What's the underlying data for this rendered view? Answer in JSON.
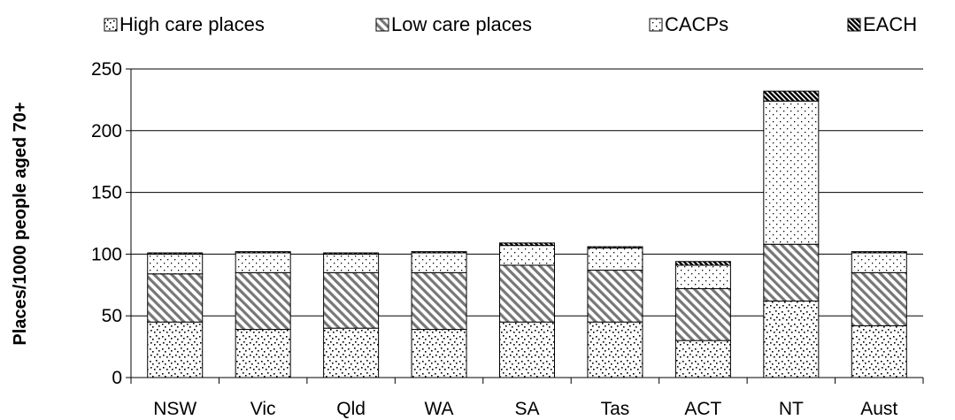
{
  "chart_data": {
    "type": "bar",
    "stacked": true,
    "title": "",
    "xlabel": "",
    "ylabel": "Places/1000 people aged 70+",
    "ylim": [
      0,
      250
    ],
    "yticks": [
      0,
      50,
      100,
      150,
      200,
      250
    ],
    "grid": true,
    "legend_position": "top",
    "categories": [
      "NSW",
      "Vic",
      "Qld",
      "WA",
      "SA",
      "Tas",
      "ACT",
      "NT",
      "Aust"
    ],
    "series": [
      {
        "name": "High care places",
        "pattern": "scattered-dots",
        "values": [
          45,
          39,
          40,
          39,
          45,
          45,
          30,
          62,
          42
        ]
      },
      {
        "name": "Low care places",
        "pattern": "diagonal-hatch",
        "values": [
          39,
          46,
          45,
          46,
          46,
          42,
          42,
          46,
          43
        ]
      },
      {
        "name": "CACPs",
        "pattern": "fine-dots",
        "values": [
          16,
          16,
          15,
          16,
          16,
          18,
          19,
          116,
          16
        ]
      },
      {
        "name": "EACH",
        "pattern": "dense-hatch",
        "values": [
          1,
          1,
          1,
          1,
          2,
          1,
          3,
          8,
          1
        ]
      }
    ]
  }
}
